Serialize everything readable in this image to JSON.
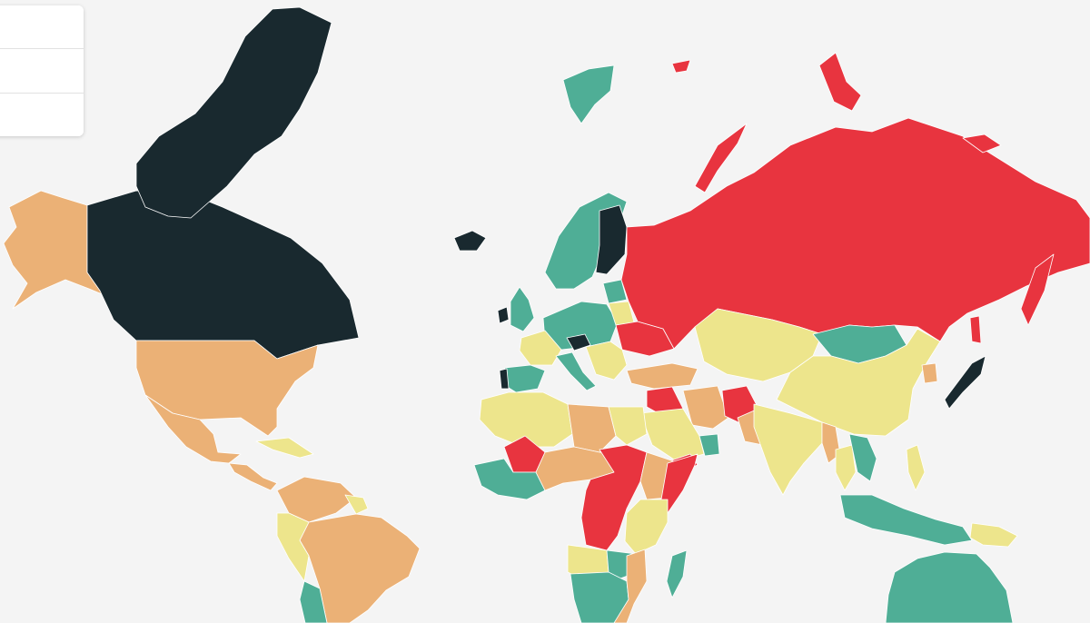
{
  "map": {
    "background": "#f4f4f4",
    "palette": {
      "dark": "#19292f",
      "teal": "#4fae96",
      "yellow": "#ede58c",
      "orange": "#ebb176",
      "red": "#e8343f"
    },
    "controls": {
      "buttons": [
        {
          "name": "zoom-in-button",
          "label": ""
        },
        {
          "name": "zoom-out-button",
          "label": ""
        },
        {
          "name": "reset-view-button",
          "label": ""
        }
      ]
    },
    "regions": [
      {
        "name": "greenland",
        "category": "dark"
      },
      {
        "name": "canada",
        "category": "dark"
      },
      {
        "name": "alaska",
        "category": "orange"
      },
      {
        "name": "usa",
        "category": "orange"
      },
      {
        "name": "mexico",
        "category": "orange"
      },
      {
        "name": "central-america",
        "category": "orange"
      },
      {
        "name": "caribbean",
        "category": "yellow"
      },
      {
        "name": "colombia-venezuela",
        "category": "orange"
      },
      {
        "name": "brazil",
        "category": "orange"
      },
      {
        "name": "peru",
        "category": "yellow"
      },
      {
        "name": "bolivia-paraguay",
        "category": "teal"
      },
      {
        "name": "guyana",
        "category": "yellow"
      },
      {
        "name": "iceland",
        "category": "dark"
      },
      {
        "name": "svalbard",
        "category": "teal"
      },
      {
        "name": "scandinavia",
        "category": "teal"
      },
      {
        "name": "finland",
        "category": "dark"
      },
      {
        "name": "uk",
        "category": "teal"
      },
      {
        "name": "ireland",
        "category": "dark"
      },
      {
        "name": "france",
        "category": "yellow"
      },
      {
        "name": "iberia",
        "category": "teal"
      },
      {
        "name": "portugal",
        "category": "dark"
      },
      {
        "name": "central-europe",
        "category": "teal"
      },
      {
        "name": "austria",
        "category": "dark"
      },
      {
        "name": "italy",
        "category": "teal"
      },
      {
        "name": "balkans",
        "category": "yellow"
      },
      {
        "name": "baltics",
        "category": "teal"
      },
      {
        "name": "belarus",
        "category": "yellow"
      },
      {
        "name": "ukraine",
        "category": "red"
      },
      {
        "name": "russia",
        "category": "red"
      },
      {
        "name": "novaya-zemlya",
        "category": "red"
      },
      {
        "name": "franz-josef",
        "category": "red"
      },
      {
        "name": "new-siberian",
        "category": "red"
      },
      {
        "name": "kamchatka",
        "category": "red"
      },
      {
        "name": "sakhalin",
        "category": "red"
      },
      {
        "name": "turkey",
        "category": "orange"
      },
      {
        "name": "central-asia",
        "category": "yellow"
      },
      {
        "name": "mongolia",
        "category": "teal"
      },
      {
        "name": "china",
        "category": "yellow"
      },
      {
        "name": "korea",
        "category": "orange"
      },
      {
        "name": "japan",
        "category": "dark"
      },
      {
        "name": "syria-iraq",
        "category": "red"
      },
      {
        "name": "saudi-arabia",
        "category": "yellow"
      },
      {
        "name": "iran",
        "category": "orange"
      },
      {
        "name": "yemen",
        "category": "red"
      },
      {
        "name": "oman",
        "category": "teal"
      },
      {
        "name": "afghanistan",
        "category": "red"
      },
      {
        "name": "pakistan",
        "category": "orange"
      },
      {
        "name": "india",
        "category": "yellow"
      },
      {
        "name": "myanmar",
        "category": "orange"
      },
      {
        "name": "thailand",
        "category": "yellow"
      },
      {
        "name": "indochina",
        "category": "teal"
      },
      {
        "name": "philippines",
        "category": "yellow"
      },
      {
        "name": "indonesia",
        "category": "teal"
      },
      {
        "name": "new-guinea",
        "category": "yellow"
      },
      {
        "name": "australia",
        "category": "teal"
      },
      {
        "name": "maghreb",
        "category": "yellow"
      },
      {
        "name": "libya",
        "category": "orange"
      },
      {
        "name": "egypt",
        "category": "yellow"
      },
      {
        "name": "mali",
        "category": "red"
      },
      {
        "name": "west-africa",
        "category": "teal"
      },
      {
        "name": "sahel",
        "category": "orange"
      },
      {
        "name": "sudan-car-drc",
        "category": "red"
      },
      {
        "name": "ethiopia",
        "category": "orange"
      },
      {
        "name": "somalia",
        "category": "red"
      },
      {
        "name": "east-africa",
        "category": "yellow"
      },
      {
        "name": "angola",
        "category": "yellow"
      },
      {
        "name": "zambia",
        "category": "teal"
      },
      {
        "name": "southern-africa",
        "category": "teal"
      },
      {
        "name": "mozambique",
        "category": "orange"
      },
      {
        "name": "madagascar",
        "category": "teal"
      }
    ]
  }
}
